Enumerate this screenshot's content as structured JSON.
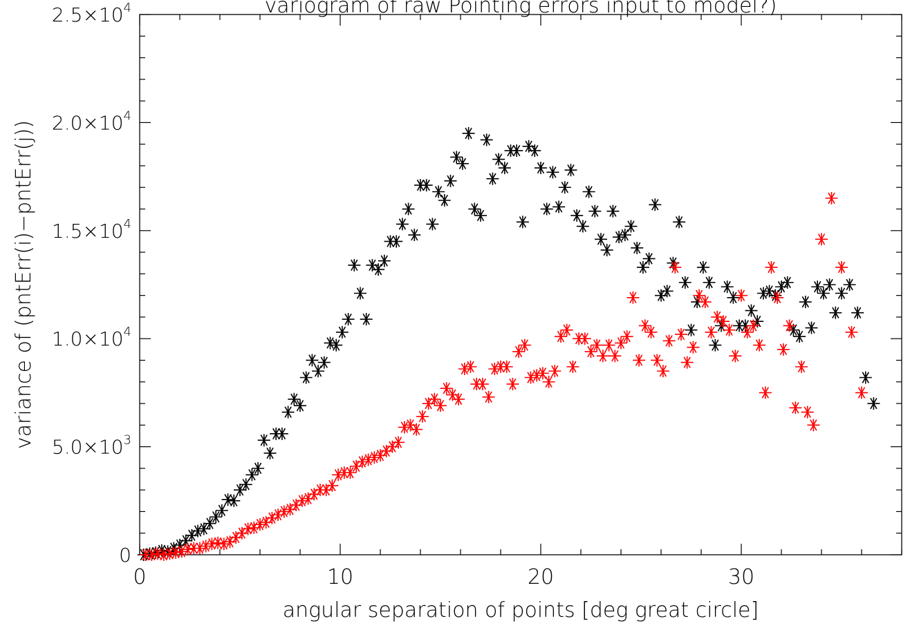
{
  "chart_data": {
    "type": "scatter",
    "title": "variogram of raw Pointing errors input to model?)",
    "xlabel": "angular separation of points [deg great circle]",
    "ylabel": "variance of (pntErr(i)−pntErr(j))",
    "xlim": [
      0,
      38
    ],
    "ylim": [
      0,
      25000
    ],
    "xticks": [
      {
        "value": 0,
        "label": "0"
      },
      {
        "value": 10,
        "label": "10"
      },
      {
        "value": 20,
        "label": "20"
      },
      {
        "value": 30,
        "label": "30"
      }
    ],
    "yticks": [
      {
        "value": 0,
        "mant": "0",
        "exp": ""
      },
      {
        "value": 5000,
        "mant": "5.0×10",
        "exp": "3"
      },
      {
        "value": 10000,
        "mant": "1.0×10",
        "exp": "4"
      },
      {
        "value": 15000,
        "mant": "1.5×10",
        "exp": "4"
      },
      {
        "value": 20000,
        "mant": "2.0×10",
        "exp": "4"
      },
      {
        "value": 25000,
        "mant": "2.5×10",
        "exp": "4"
      }
    ],
    "marker": "asterisk",
    "grid": false,
    "series": [
      {
        "color": "#000000",
        "points": [
          [
            0.2,
            0
          ],
          [
            0.5,
            50
          ],
          [
            0.8,
            100
          ],
          [
            1.1,
            200
          ],
          [
            1.4,
            150
          ],
          [
            1.7,
            300
          ],
          [
            2.0,
            450
          ],
          [
            2.3,
            650
          ],
          [
            2.6,
            900
          ],
          [
            2.9,
            1100
          ],
          [
            3.2,
            1200
          ],
          [
            3.5,
            1450
          ],
          [
            3.8,
            1750
          ],
          [
            4.1,
            2050
          ],
          [
            4.4,
            2550
          ],
          [
            4.7,
            2500
          ],
          [
            5.0,
            3000
          ],
          [
            5.3,
            3250
          ],
          [
            5.6,
            3700
          ],
          [
            5.9,
            4000
          ],
          [
            6.2,
            5300
          ],
          [
            6.5,
            4700
          ],
          [
            6.8,
            5600
          ],
          [
            7.1,
            5600
          ],
          [
            7.4,
            6600
          ],
          [
            7.7,
            7200
          ],
          [
            8.0,
            6900
          ],
          [
            8.3,
            8200
          ],
          [
            8.6,
            9000
          ],
          [
            8.9,
            8500
          ],
          [
            9.2,
            8900
          ],
          [
            9.5,
            9800
          ],
          [
            9.8,
            9700
          ],
          [
            10.1,
            10300
          ],
          [
            10.4,
            10900
          ],
          [
            10.7,
            13400
          ],
          [
            11.0,
            12100
          ],
          [
            11.3,
            10900
          ],
          [
            11.6,
            13400
          ],
          [
            11.9,
            13200
          ],
          [
            12.2,
            13600
          ],
          [
            12.5,
            14500
          ],
          [
            12.8,
            14500
          ],
          [
            13.1,
            15300
          ],
          [
            13.4,
            16000
          ],
          [
            13.7,
            14800
          ],
          [
            14.0,
            17100
          ],
          [
            14.3,
            17100
          ],
          [
            14.6,
            15300
          ],
          [
            14.9,
            16800
          ],
          [
            15.2,
            16400
          ],
          [
            15.5,
            17300
          ],
          [
            15.8,
            18400
          ],
          [
            16.1,
            18100
          ],
          [
            16.4,
            19500
          ],
          [
            16.7,
            16000
          ],
          [
            17.0,
            15700
          ],
          [
            17.3,
            19200
          ],
          [
            17.6,
            17400
          ],
          [
            17.9,
            18300
          ],
          [
            18.2,
            17900
          ],
          [
            18.5,
            18700
          ],
          [
            18.8,
            18700
          ],
          [
            19.1,
            15400
          ],
          [
            19.4,
            18900
          ],
          [
            19.7,
            18700
          ],
          [
            20.0,
            17900
          ],
          [
            20.3,
            16000
          ],
          [
            20.6,
            17700
          ],
          [
            20.9,
            16100
          ],
          [
            21.2,
            17000
          ],
          [
            21.5,
            17800
          ],
          [
            21.8,
            15700
          ],
          [
            22.1,
            15200
          ],
          [
            22.4,
            16800
          ],
          [
            22.7,
            15900
          ],
          [
            23.0,
            14600
          ],
          [
            23.3,
            14100
          ],
          [
            23.6,
            15900
          ],
          [
            23.9,
            14700
          ],
          [
            24.2,
            14800
          ],
          [
            24.5,
            15200
          ],
          [
            24.8,
            14200
          ],
          [
            25.1,
            13300
          ],
          [
            25.4,
            13700
          ],
          [
            25.7,
            16200
          ],
          [
            26.0,
            12000
          ],
          [
            26.3,
            12200
          ],
          [
            26.6,
            13500
          ],
          [
            26.9,
            15400
          ],
          [
            27.2,
            12600
          ],
          [
            27.5,
            10400
          ],
          [
            27.8,
            11700
          ],
          [
            28.1,
            13300
          ],
          [
            28.4,
            12600
          ],
          [
            28.7,
            9700
          ],
          [
            29.0,
            10600
          ],
          [
            29.3,
            12400
          ],
          [
            29.6,
            11900
          ],
          [
            29.9,
            10600
          ],
          [
            30.2,
            10600
          ],
          [
            30.5,
            11300
          ],
          [
            30.8,
            10800
          ],
          [
            31.1,
            12100
          ],
          [
            31.4,
            12200
          ],
          [
            31.7,
            12000
          ],
          [
            32.0,
            12400
          ],
          [
            32.3,
            12600
          ],
          [
            32.6,
            10400
          ],
          [
            32.9,
            10100
          ],
          [
            33.2,
            11700
          ],
          [
            33.5,
            10500
          ],
          [
            33.8,
            12400
          ],
          [
            34.1,
            12100
          ],
          [
            34.4,
            12500
          ],
          [
            34.7,
            11200
          ],
          [
            35.0,
            12100
          ],
          [
            35.4,
            12500
          ],
          [
            35.8,
            11200
          ],
          [
            36.2,
            8200
          ],
          [
            36.6,
            7000
          ]
        ]
      },
      {
        "color": "#ff0000",
        "points": [
          [
            0.3,
            0
          ],
          [
            0.6,
            0
          ],
          [
            0.9,
            50
          ],
          [
            1.2,
            0
          ],
          [
            1.5,
            50
          ],
          [
            1.8,
            100
          ],
          [
            2.1,
            150
          ],
          [
            2.4,
            250
          ],
          [
            2.7,
            300
          ],
          [
            3.0,
            300
          ],
          [
            3.3,
            400
          ],
          [
            3.6,
            500
          ],
          [
            3.9,
            550
          ],
          [
            4.2,
            500
          ],
          [
            4.5,
            600
          ],
          [
            4.8,
            800
          ],
          [
            5.1,
            1000
          ],
          [
            5.4,
            1200
          ],
          [
            5.7,
            1250
          ],
          [
            6.0,
            1400
          ],
          [
            6.3,
            1500
          ],
          [
            6.6,
            1700
          ],
          [
            6.9,
            1850
          ],
          [
            7.2,
            2000
          ],
          [
            7.5,
            2100
          ],
          [
            7.8,
            2300
          ],
          [
            8.1,
            2500
          ],
          [
            8.4,
            2600
          ],
          [
            8.7,
            2800
          ],
          [
            9.0,
            3000
          ],
          [
            9.3,
            3000
          ],
          [
            9.6,
            3200
          ],
          [
            9.9,
            3700
          ],
          [
            10.2,
            3800
          ],
          [
            10.5,
            3800
          ],
          [
            10.8,
            4100
          ],
          [
            11.1,
            4300
          ],
          [
            11.4,
            4400
          ],
          [
            11.7,
            4500
          ],
          [
            12.0,
            4600
          ],
          [
            12.3,
            4800
          ],
          [
            12.6,
            5000
          ],
          [
            12.9,
            5200
          ],
          [
            13.2,
            5900
          ],
          [
            13.5,
            6000
          ],
          [
            13.8,
            5800
          ],
          [
            14.1,
            6400
          ],
          [
            14.4,
            7000
          ],
          [
            14.7,
            7200
          ],
          [
            15.0,
            6900
          ],
          [
            15.3,
            7700
          ],
          [
            15.6,
            7400
          ],
          [
            15.9,
            7200
          ],
          [
            16.2,
            8600
          ],
          [
            16.5,
            8700
          ],
          [
            16.8,
            7900
          ],
          [
            17.1,
            7900
          ],
          [
            17.4,
            7300
          ],
          [
            17.7,
            8600
          ],
          [
            18.0,
            8700
          ],
          [
            18.3,
            8700
          ],
          [
            18.6,
            7900
          ],
          [
            18.9,
            9400
          ],
          [
            19.2,
            9700
          ],
          [
            19.5,
            8200
          ],
          [
            19.8,
            8300
          ],
          [
            20.1,
            8400
          ],
          [
            20.4,
            8000
          ],
          [
            20.7,
            8500
          ],
          [
            21.0,
            10100
          ],
          [
            21.3,
            10400
          ],
          [
            21.6,
            8700
          ],
          [
            21.9,
            10000
          ],
          [
            22.2,
            10000
          ],
          [
            22.5,
            9400
          ],
          [
            22.8,
            9700
          ],
          [
            23.1,
            9200
          ],
          [
            23.4,
            9700
          ],
          [
            23.7,
            9200
          ],
          [
            24.0,
            9800
          ],
          [
            24.3,
            10100
          ],
          [
            24.6,
            11900
          ],
          [
            24.9,
            9000
          ],
          [
            25.2,
            10600
          ],
          [
            25.5,
            10300
          ],
          [
            25.8,
            9000
          ],
          [
            26.1,
            8500
          ],
          [
            26.4,
            9900
          ],
          [
            26.7,
            13300
          ],
          [
            27.0,
            10200
          ],
          [
            27.3,
            8900
          ],
          [
            27.6,
            9600
          ],
          [
            27.9,
            12000
          ],
          [
            28.2,
            11700
          ],
          [
            28.5,
            10300
          ],
          [
            28.8,
            11000
          ],
          [
            29.1,
            10800
          ],
          [
            29.4,
            10400
          ],
          [
            29.7,
            9200
          ],
          [
            30.0,
            12000
          ],
          [
            30.3,
            10300
          ],
          [
            30.6,
            10600
          ],
          [
            30.9,
            9700
          ],
          [
            31.2,
            7500
          ],
          [
            31.5,
            13300
          ],
          [
            31.8,
            11900
          ],
          [
            32.1,
            9500
          ],
          [
            32.4,
            10600
          ],
          [
            32.7,
            6800
          ],
          [
            33.0,
            8700
          ],
          [
            33.3,
            6600
          ],
          [
            33.6,
            6000
          ],
          [
            34.0,
            14600
          ],
          [
            34.5,
            16500
          ],
          [
            35.0,
            13300
          ],
          [
            35.5,
            10300
          ],
          [
            36.0,
            7500
          ]
        ]
      }
    ]
  }
}
